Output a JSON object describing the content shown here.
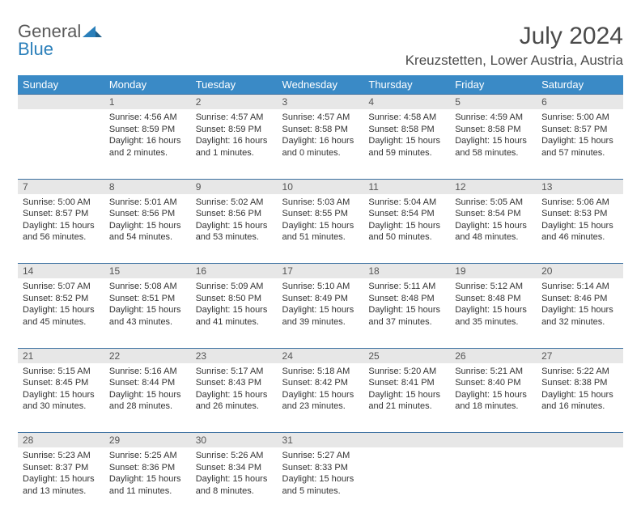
{
  "brand": {
    "part1": "General",
    "part2": "Blue"
  },
  "title": "July 2024",
  "location": "Kreuzstetten, Lower Austria, Austria",
  "colors": {
    "header_bg": "#3a8ac6",
    "header_text": "#ffffff",
    "daynum_bg": "#e7e7e7",
    "daynum_text": "#555555",
    "rule": "#3a6fa0",
    "body_text": "#333333",
    "title_text": "#4a4a4a",
    "brand_gray": "#5a5a5a",
    "brand_blue": "#2a7fba"
  },
  "calendar": {
    "type": "table",
    "first_weekday_index": 1,
    "day_headers": [
      "Sunday",
      "Monday",
      "Tuesday",
      "Wednesday",
      "Thursday",
      "Friday",
      "Saturday"
    ],
    "days": {
      "1": {
        "sunrise": "Sunrise: 4:56 AM",
        "sunset": "Sunset: 8:59 PM",
        "daylight1": "Daylight: 16 hours",
        "daylight2": "and 2 minutes."
      },
      "2": {
        "sunrise": "Sunrise: 4:57 AM",
        "sunset": "Sunset: 8:59 PM",
        "daylight1": "Daylight: 16 hours",
        "daylight2": "and 1 minutes."
      },
      "3": {
        "sunrise": "Sunrise: 4:57 AM",
        "sunset": "Sunset: 8:58 PM",
        "daylight1": "Daylight: 16 hours",
        "daylight2": "and 0 minutes."
      },
      "4": {
        "sunrise": "Sunrise: 4:58 AM",
        "sunset": "Sunset: 8:58 PM",
        "daylight1": "Daylight: 15 hours",
        "daylight2": "and 59 minutes."
      },
      "5": {
        "sunrise": "Sunrise: 4:59 AM",
        "sunset": "Sunset: 8:58 PM",
        "daylight1": "Daylight: 15 hours",
        "daylight2": "and 58 minutes."
      },
      "6": {
        "sunrise": "Sunrise: 5:00 AM",
        "sunset": "Sunset: 8:57 PM",
        "daylight1": "Daylight: 15 hours",
        "daylight2": "and 57 minutes."
      },
      "7": {
        "sunrise": "Sunrise: 5:00 AM",
        "sunset": "Sunset: 8:57 PM",
        "daylight1": "Daylight: 15 hours",
        "daylight2": "and 56 minutes."
      },
      "8": {
        "sunrise": "Sunrise: 5:01 AM",
        "sunset": "Sunset: 8:56 PM",
        "daylight1": "Daylight: 15 hours",
        "daylight2": "and 54 minutes."
      },
      "9": {
        "sunrise": "Sunrise: 5:02 AM",
        "sunset": "Sunset: 8:56 PM",
        "daylight1": "Daylight: 15 hours",
        "daylight2": "and 53 minutes."
      },
      "10": {
        "sunrise": "Sunrise: 5:03 AM",
        "sunset": "Sunset: 8:55 PM",
        "daylight1": "Daylight: 15 hours",
        "daylight2": "and 51 minutes."
      },
      "11": {
        "sunrise": "Sunrise: 5:04 AM",
        "sunset": "Sunset: 8:54 PM",
        "daylight1": "Daylight: 15 hours",
        "daylight2": "and 50 minutes."
      },
      "12": {
        "sunrise": "Sunrise: 5:05 AM",
        "sunset": "Sunset: 8:54 PM",
        "daylight1": "Daylight: 15 hours",
        "daylight2": "and 48 minutes."
      },
      "13": {
        "sunrise": "Sunrise: 5:06 AM",
        "sunset": "Sunset: 8:53 PM",
        "daylight1": "Daylight: 15 hours",
        "daylight2": "and 46 minutes."
      },
      "14": {
        "sunrise": "Sunrise: 5:07 AM",
        "sunset": "Sunset: 8:52 PM",
        "daylight1": "Daylight: 15 hours",
        "daylight2": "and 45 minutes."
      },
      "15": {
        "sunrise": "Sunrise: 5:08 AM",
        "sunset": "Sunset: 8:51 PM",
        "daylight1": "Daylight: 15 hours",
        "daylight2": "and 43 minutes."
      },
      "16": {
        "sunrise": "Sunrise: 5:09 AM",
        "sunset": "Sunset: 8:50 PM",
        "daylight1": "Daylight: 15 hours",
        "daylight2": "and 41 minutes."
      },
      "17": {
        "sunrise": "Sunrise: 5:10 AM",
        "sunset": "Sunset: 8:49 PM",
        "daylight1": "Daylight: 15 hours",
        "daylight2": "and 39 minutes."
      },
      "18": {
        "sunrise": "Sunrise: 5:11 AM",
        "sunset": "Sunset: 8:48 PM",
        "daylight1": "Daylight: 15 hours",
        "daylight2": "and 37 minutes."
      },
      "19": {
        "sunrise": "Sunrise: 5:12 AM",
        "sunset": "Sunset: 8:48 PM",
        "daylight1": "Daylight: 15 hours",
        "daylight2": "and 35 minutes."
      },
      "20": {
        "sunrise": "Sunrise: 5:14 AM",
        "sunset": "Sunset: 8:46 PM",
        "daylight1": "Daylight: 15 hours",
        "daylight2": "and 32 minutes."
      },
      "21": {
        "sunrise": "Sunrise: 5:15 AM",
        "sunset": "Sunset: 8:45 PM",
        "daylight1": "Daylight: 15 hours",
        "daylight2": "and 30 minutes."
      },
      "22": {
        "sunrise": "Sunrise: 5:16 AM",
        "sunset": "Sunset: 8:44 PM",
        "daylight1": "Daylight: 15 hours",
        "daylight2": "and 28 minutes."
      },
      "23": {
        "sunrise": "Sunrise: 5:17 AM",
        "sunset": "Sunset: 8:43 PM",
        "daylight1": "Daylight: 15 hours",
        "daylight2": "and 26 minutes."
      },
      "24": {
        "sunrise": "Sunrise: 5:18 AM",
        "sunset": "Sunset: 8:42 PM",
        "daylight1": "Daylight: 15 hours",
        "daylight2": "and 23 minutes."
      },
      "25": {
        "sunrise": "Sunrise: 5:20 AM",
        "sunset": "Sunset: 8:41 PM",
        "daylight1": "Daylight: 15 hours",
        "daylight2": "and 21 minutes."
      },
      "26": {
        "sunrise": "Sunrise: 5:21 AM",
        "sunset": "Sunset: 8:40 PM",
        "daylight1": "Daylight: 15 hours",
        "daylight2": "and 18 minutes."
      },
      "27": {
        "sunrise": "Sunrise: 5:22 AM",
        "sunset": "Sunset: 8:38 PM",
        "daylight1": "Daylight: 15 hours",
        "daylight2": "and 16 minutes."
      },
      "28": {
        "sunrise": "Sunrise: 5:23 AM",
        "sunset": "Sunset: 8:37 PM",
        "daylight1": "Daylight: 15 hours",
        "daylight2": "and 13 minutes."
      },
      "29": {
        "sunrise": "Sunrise: 5:25 AM",
        "sunset": "Sunset: 8:36 PM",
        "daylight1": "Daylight: 15 hours",
        "daylight2": "and 11 minutes."
      },
      "30": {
        "sunrise": "Sunrise: 5:26 AM",
        "sunset": "Sunset: 8:34 PM",
        "daylight1": "Daylight: 15 hours",
        "daylight2": "and 8 minutes."
      },
      "31": {
        "sunrise": "Sunrise: 5:27 AM",
        "sunset": "Sunset: 8:33 PM",
        "daylight1": "Daylight: 15 hours",
        "daylight2": "and 5 minutes."
      }
    },
    "weeks": [
      [
        null,
        1,
        2,
        3,
        4,
        5,
        6
      ],
      [
        7,
        8,
        9,
        10,
        11,
        12,
        13
      ],
      [
        14,
        15,
        16,
        17,
        18,
        19,
        20
      ],
      [
        21,
        22,
        23,
        24,
        25,
        26,
        27
      ],
      [
        28,
        29,
        30,
        31,
        null,
        null,
        null
      ]
    ]
  }
}
